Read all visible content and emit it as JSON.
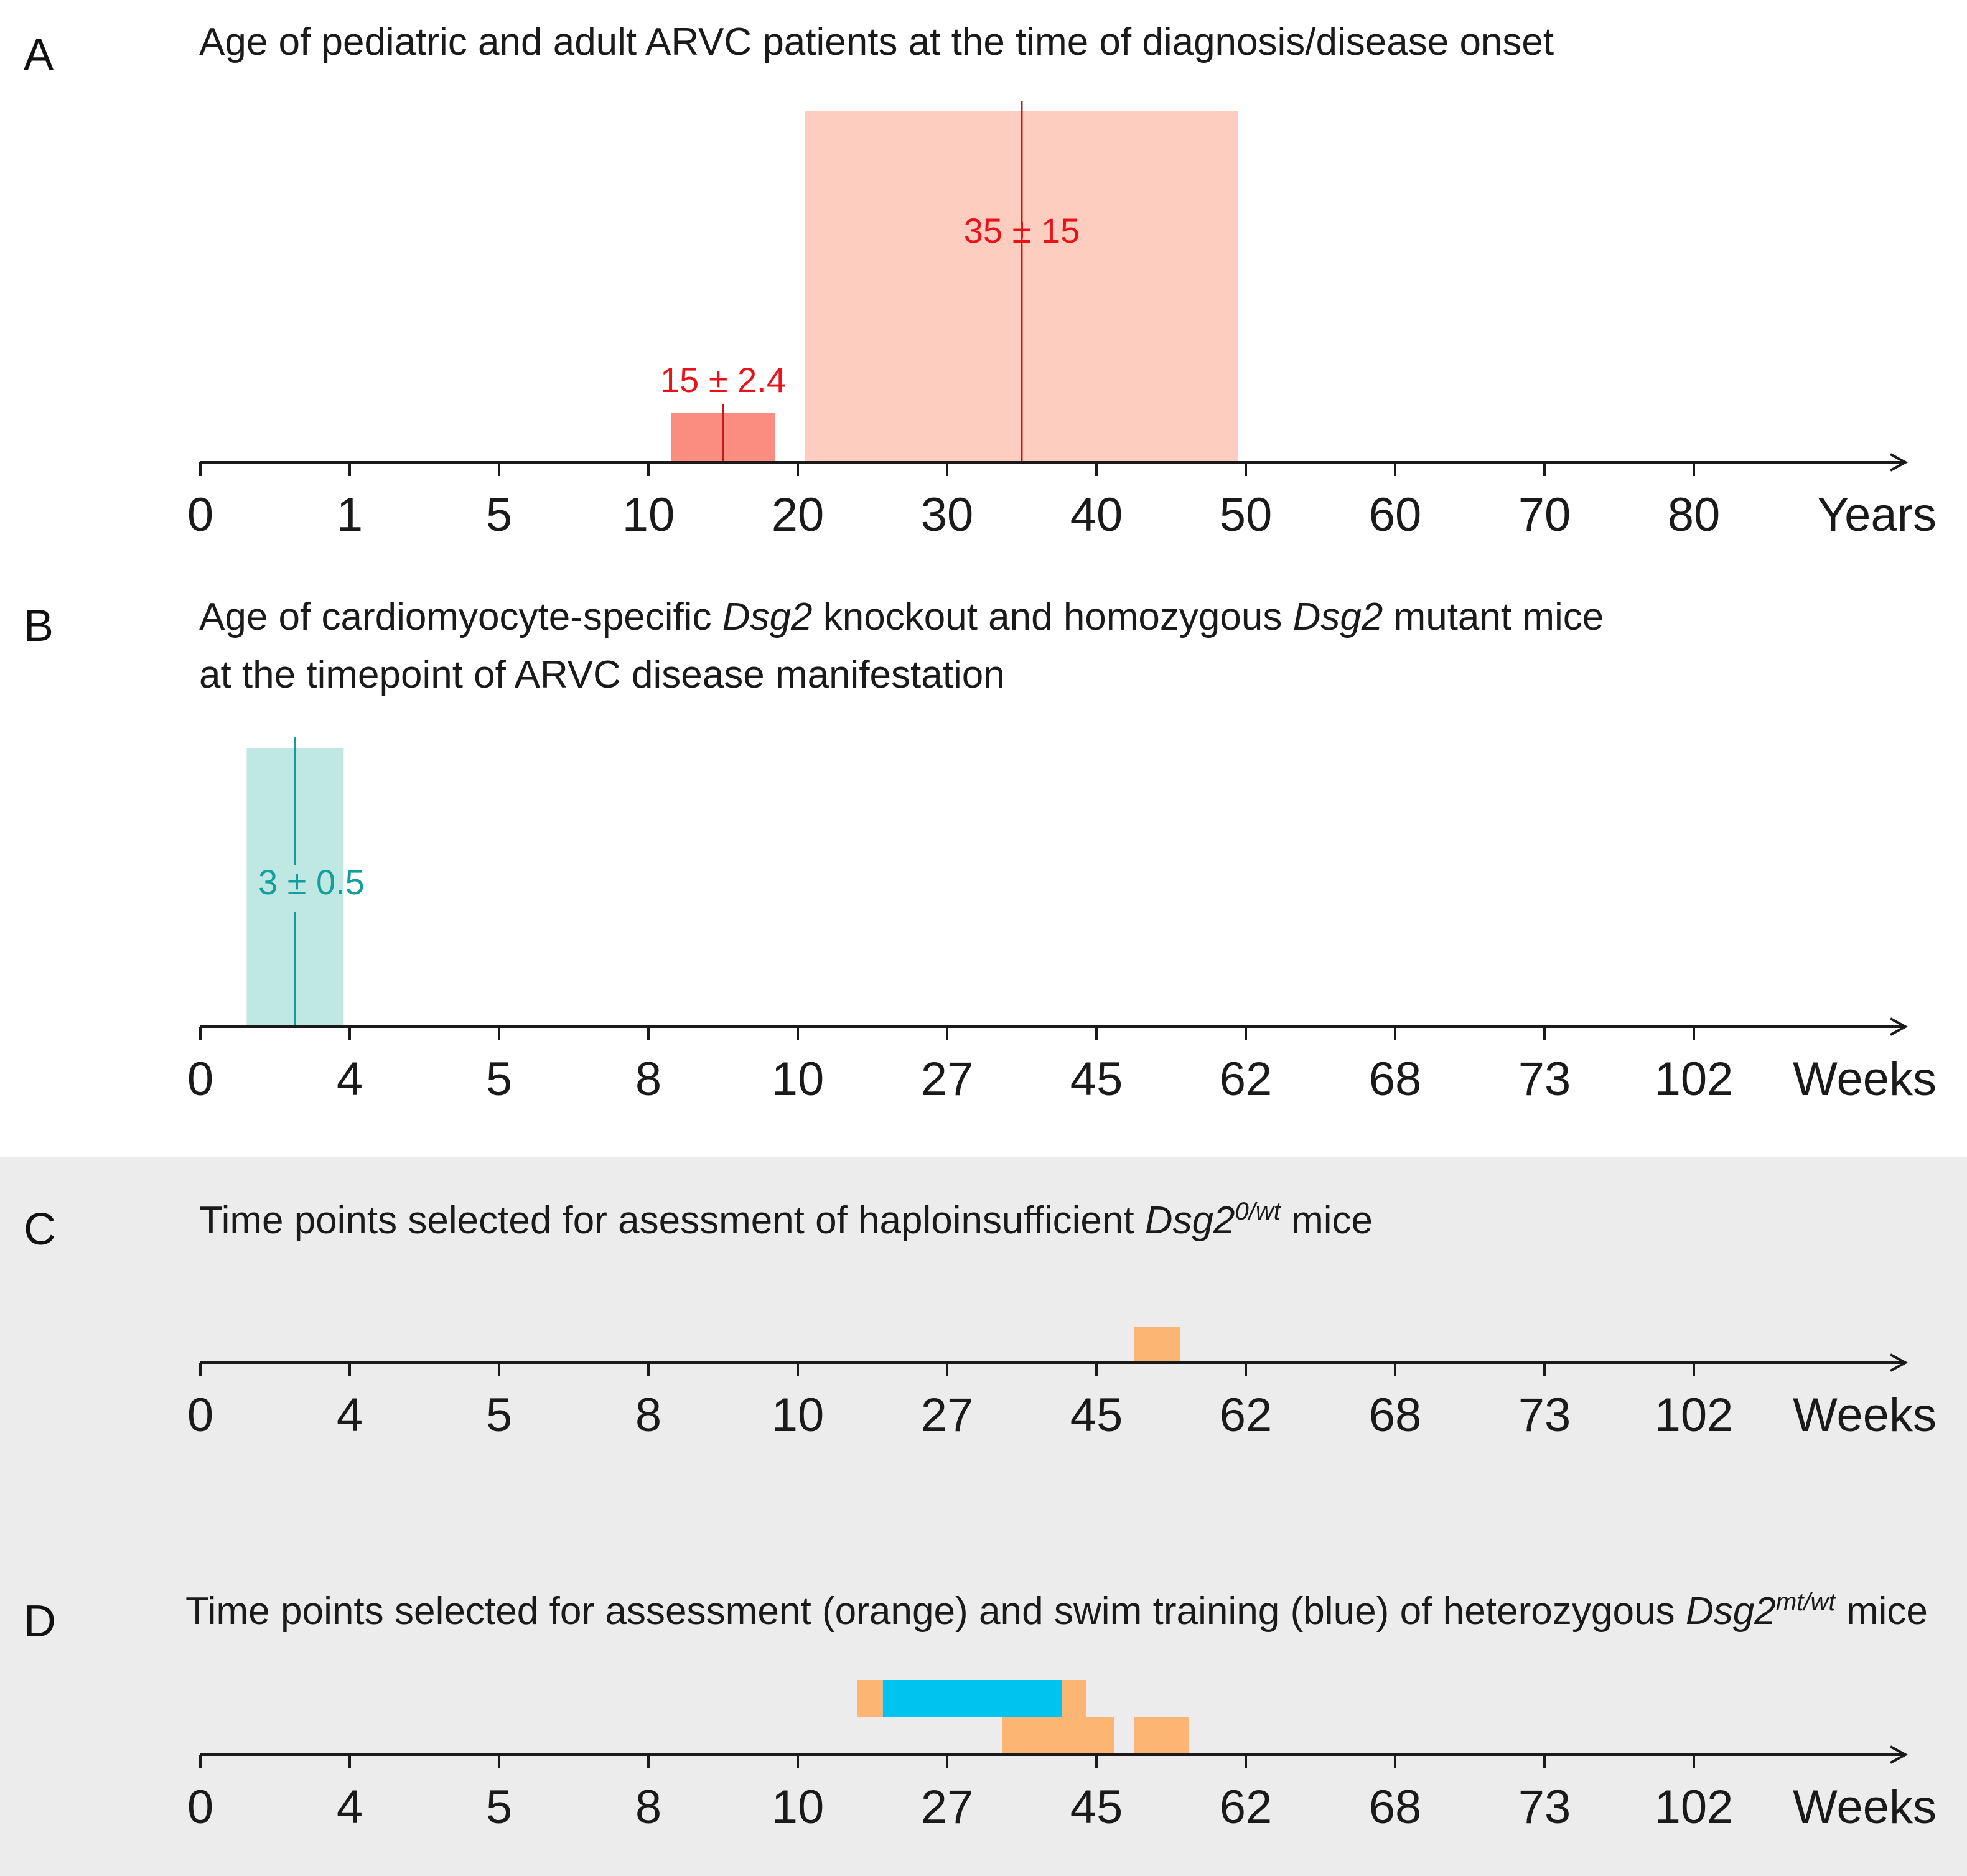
{
  "colors": {
    "adult": "#fdcdc0",
    "pediatric": "#fa8c80",
    "adult_line": "#b5211a",
    "label_red": "#e8131a",
    "mouse": "#bfe8e3",
    "mouse_line": "#0f9e9a",
    "label_teal": "#149e9e",
    "assessment": "#fdb574",
    "swim": "#00c4f0",
    "panel_bg": "#ececec"
  },
  "chart_data": [
    {
      "type": "bar",
      "panel": "A",
      "title": "Age of pediatric and adult ARVC patients at the time of diagnosis/disease onset",
      "xlabel": "Years",
      "tick_labels": [
        "0",
        "1",
        "5",
        "10",
        "20",
        "30",
        "40",
        "50",
        "60",
        "70",
        "80"
      ],
      "series": [
        {
          "name": "pediatric",
          "mean": 15,
          "sd": 2.4,
          "label": "15 ± 2.4",
          "range": [
            11.5,
            18.5
          ],
          "height": 0.14,
          "color_key": "pediatric"
        },
        {
          "name": "adult",
          "mean": 35,
          "sd": 15,
          "label": "35 ± 15",
          "range": [
            20.5,
            49.5
          ],
          "height": 1.0,
          "color_key": "adult"
        }
      ]
    },
    {
      "type": "bar",
      "panel": "B",
      "title_parts": [
        {
          "text": "Age of cardiomyocyte-specific ",
          "italic": false
        },
        {
          "text": "Dsg2",
          "italic": true
        },
        {
          "text": " knockout and homozygous ",
          "italic": false
        },
        {
          "text": "Dsg2",
          "italic": true
        },
        {
          "text": " mutant mice",
          "italic": false
        }
      ],
      "title_line2": "at the timepoint of ARVC disease manifestation",
      "xlabel": "Weeks",
      "tick_labels": [
        "0",
        "4",
        "5",
        "8",
        "10",
        "27",
        "45",
        "62",
        "68",
        "73",
        "102"
      ],
      "series": [
        {
          "name": "knockout/mutant mice",
          "mean": 3,
          "sd": 0.5,
          "label": "3 ± 0.5",
          "range_idx": [
            0.31,
            0.96
          ],
          "height": 1.0,
          "color_key": "mouse"
        }
      ]
    },
    {
      "type": "bar",
      "panel": "C",
      "title_parts": [
        {
          "text": "Time points selected for asessment of haploinsufficient ",
          "italic": false
        },
        {
          "text": "Dsg2",
          "italic": true
        },
        {
          "text": "0/wt",
          "italic": true,
          "sup": true
        },
        {
          "text": " mice",
          "italic": false
        }
      ],
      "xlabel": "Weeks",
      "tick_labels": [
        "0",
        "4",
        "5",
        "8",
        "10",
        "27",
        "45",
        "62",
        "68",
        "73",
        "102"
      ],
      "series": [
        {
          "name": "assessment",
          "range_idx": [
            6.25,
            6.56
          ],
          "row": 0,
          "color_key": "assessment"
        }
      ]
    },
    {
      "type": "bar",
      "panel": "D",
      "title_parts": [
        {
          "text": "Time points selected for assessment (orange) and swim training (blue) of heterozygous ",
          "italic": false
        },
        {
          "text": "Dsg2",
          "italic": true
        },
        {
          "text": "mt/wt",
          "italic": true,
          "sup": true
        },
        {
          "text": " mice",
          "italic": false
        }
      ],
      "xlabel": "Weeks",
      "tick_labels": [
        "0",
        "4",
        "5",
        "8",
        "10",
        "27",
        "45",
        "62",
        "68",
        "73",
        "102"
      ],
      "series": [
        {
          "name": "assessment",
          "range_idx": [
            4.4,
            4.57
          ],
          "row": 1,
          "color_key": "assessment"
        },
        {
          "name": "swim training",
          "range_idx": [
            4.57,
            5.77
          ],
          "row": 1,
          "color_key": "swim"
        },
        {
          "name": "assessment",
          "range_idx": [
            5.77,
            5.93
          ],
          "row": 1,
          "color_key": "assessment"
        },
        {
          "name": "assessment",
          "range_idx": [
            5.37,
            6.12
          ],
          "row": 0,
          "color_key": "assessment"
        },
        {
          "name": "assessment",
          "range_idx": [
            6.25,
            6.62
          ],
          "row": 0,
          "color_key": "assessment"
        }
      ]
    }
  ]
}
